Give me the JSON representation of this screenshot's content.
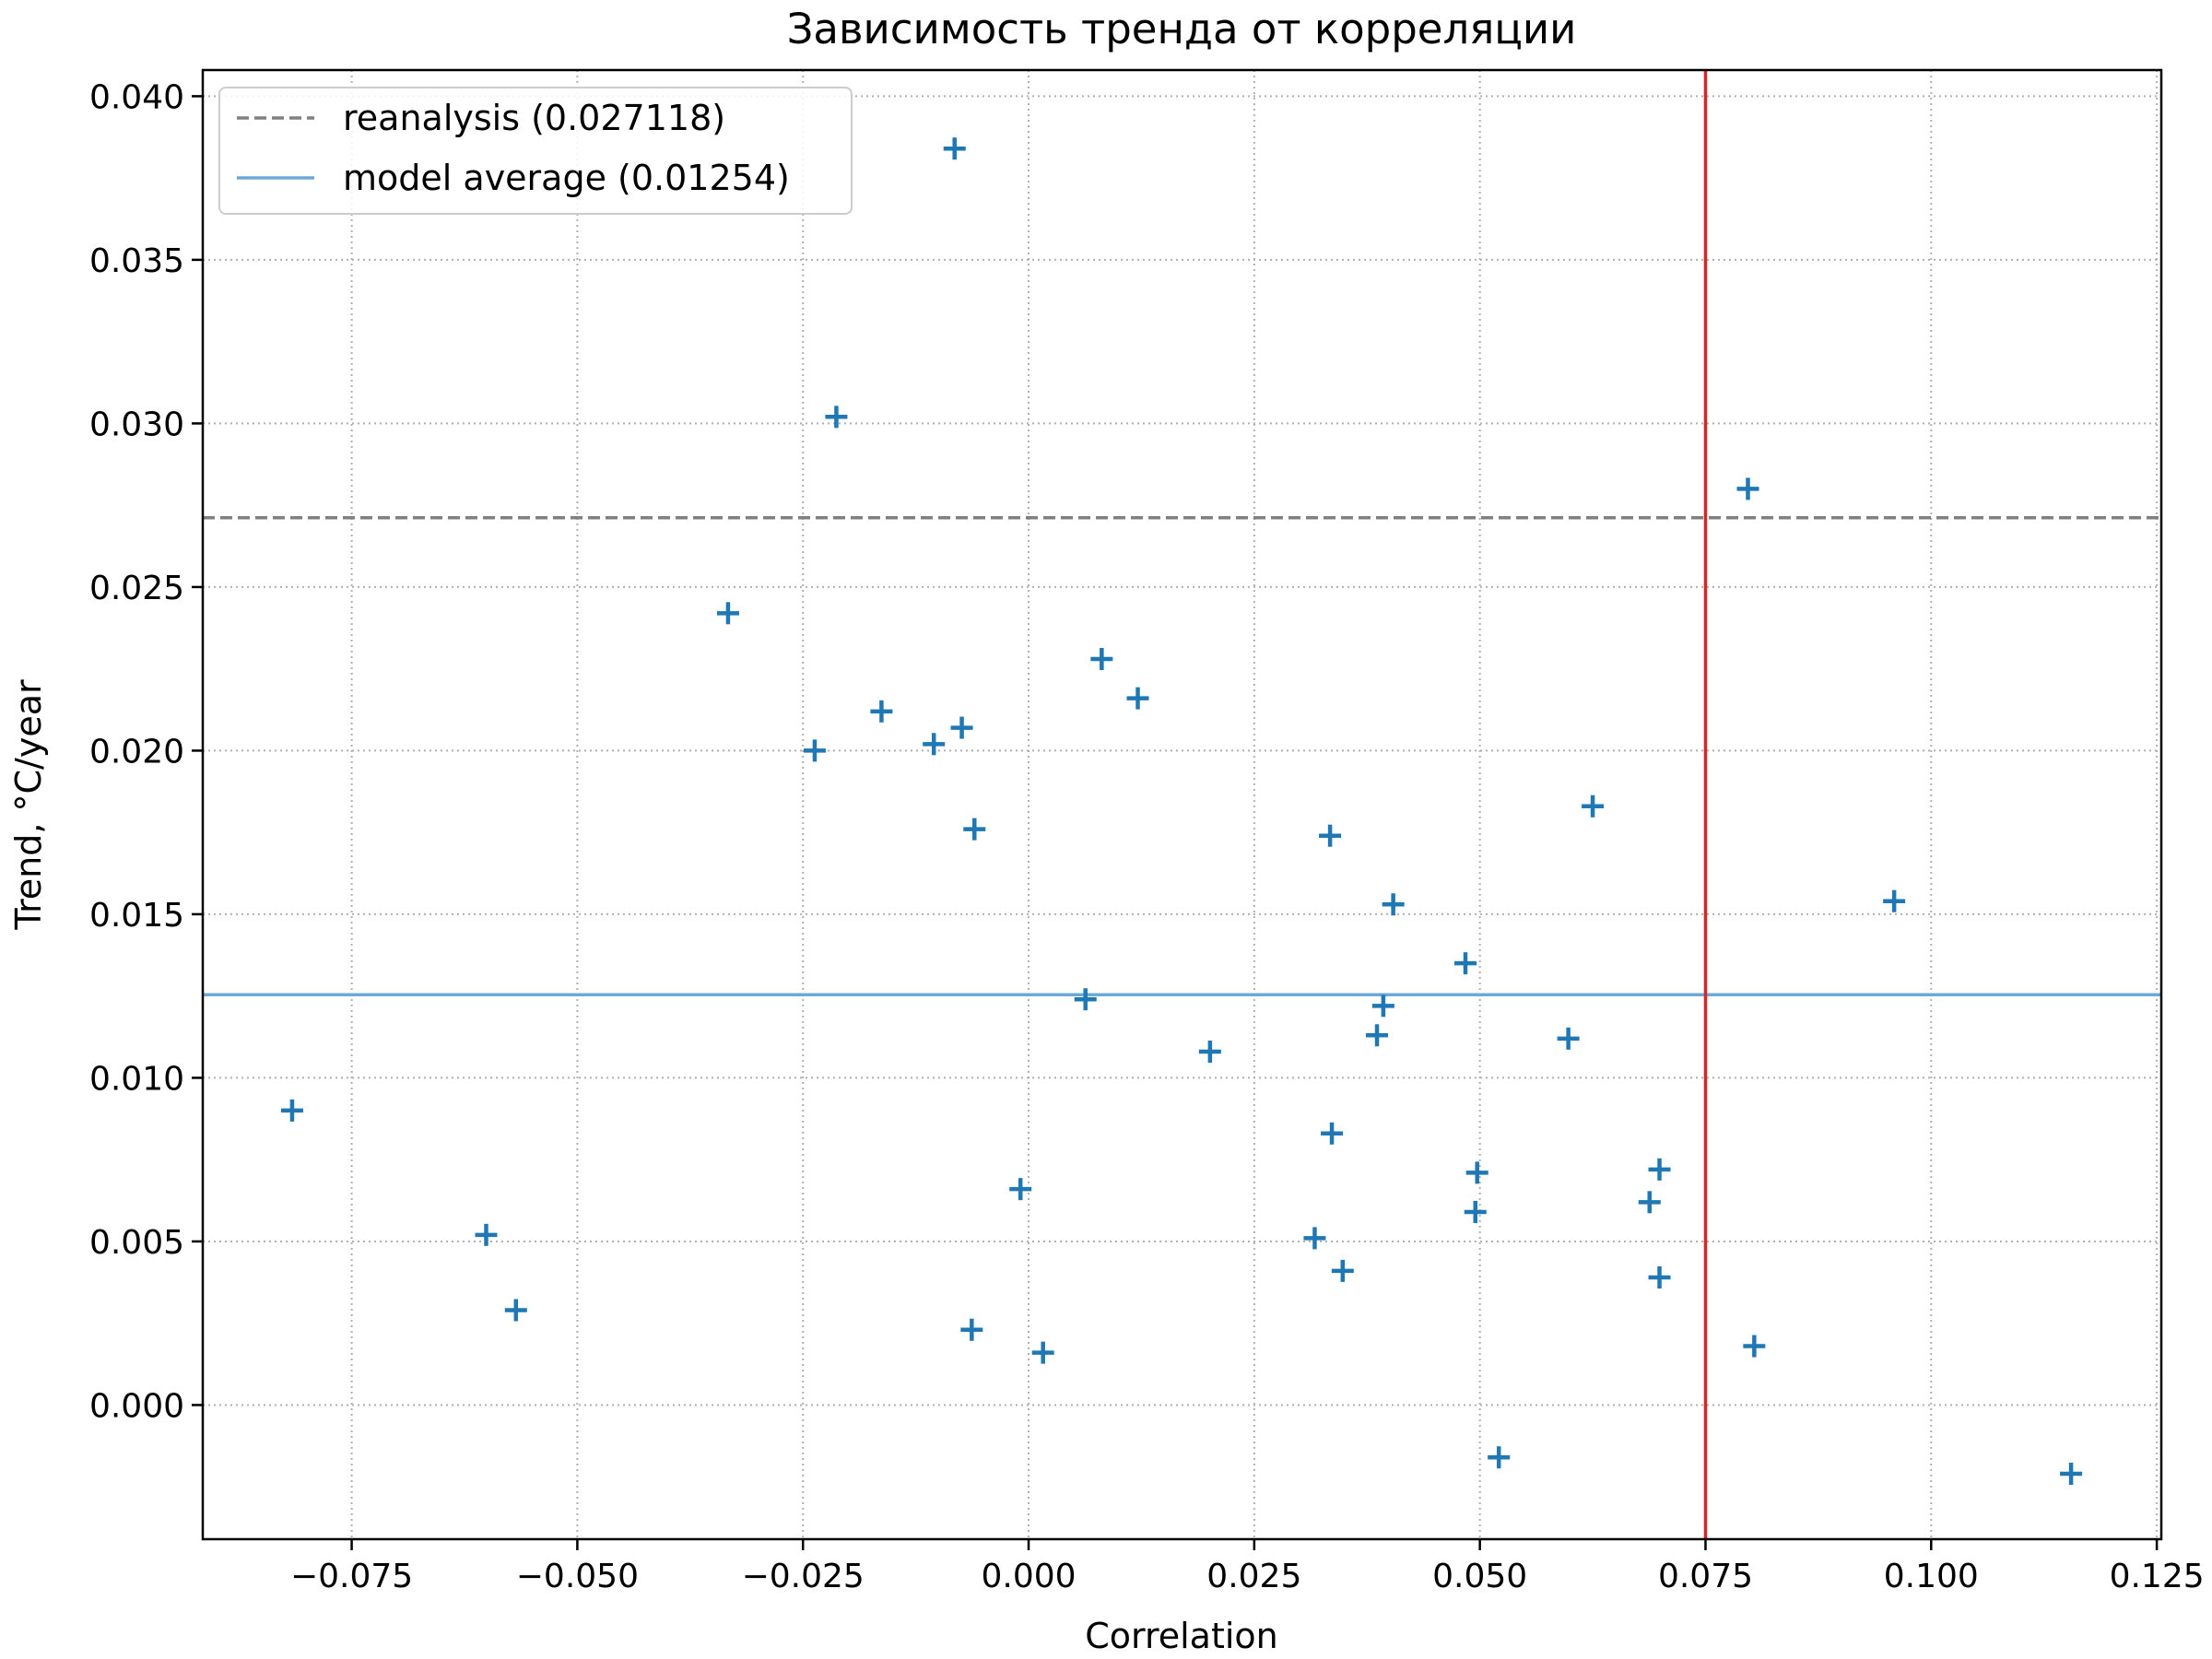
{
  "chart_data": {
    "type": "scatter",
    "title": "Зависимость тренда от корреляции",
    "xlabel": "Correlation",
    "ylabel": "Trend, °C/year",
    "xlim": [
      -0.0915,
      0.1255
    ],
    "ylim": [
      -0.0041,
      0.0408
    ],
    "xticks": [
      -0.075,
      -0.05,
      -0.025,
      0.0,
      0.025,
      0.05,
      0.075,
      0.1,
      0.125
    ],
    "xtick_labels": [
      "−0.075",
      "−0.050",
      "−0.025",
      "0.000",
      "0.025",
      "0.050",
      "0.075",
      "0.100",
      "0.125"
    ],
    "yticks": [
      0.0,
      0.005,
      0.01,
      0.015,
      0.02,
      0.025,
      0.03,
      0.035,
      0.04
    ],
    "ytick_labels": [
      "0.000",
      "0.005",
      "0.010",
      "0.015",
      "0.020",
      "0.025",
      "0.030",
      "0.035",
      "0.040"
    ],
    "grid": true,
    "legend_position": "top-left",
    "marker_color": "#1f77b4",
    "reference_lines": [
      {
        "orientation": "horizontal",
        "value": 0.027118,
        "style": "dashed",
        "color": "#808080",
        "label": "reanalysis (0.027118)"
      },
      {
        "orientation": "horizontal",
        "value": 0.01254,
        "style": "solid",
        "color": "#6ea9d5",
        "label": "model average (0.01254)"
      },
      {
        "orientation": "vertical",
        "value": 0.075,
        "style": "solid",
        "color": "#d62728"
      }
    ],
    "points": [
      {
        "x": -0.0082,
        "y": 0.0384
      },
      {
        "x": -0.0213,
        "y": 0.0302
      },
      {
        "x": 0.0797,
        "y": 0.028
      },
      {
        "x": -0.0333,
        "y": 0.0242
      },
      {
        "x": 0.0081,
        "y": 0.0228
      },
      {
        "x": 0.0121,
        "y": 0.0216
      },
      {
        "x": -0.0163,
        "y": 0.0212
      },
      {
        "x": -0.0074,
        "y": 0.0207
      },
      {
        "x": -0.0105,
        "y": 0.0202
      },
      {
        "x": -0.0237,
        "y": 0.02
      },
      {
        "x": 0.0625,
        "y": 0.0183
      },
      {
        "x": -0.006,
        "y": 0.0176
      },
      {
        "x": 0.0334,
        "y": 0.0174
      },
      {
        "x": 0.0959,
        "y": 0.0154
      },
      {
        "x": 0.0404,
        "y": 0.0153
      },
      {
        "x": 0.0484,
        "y": 0.0135
      },
      {
        "x": 0.0063,
        "y": 0.0124
      },
      {
        "x": 0.0393,
        "y": 0.0122
      },
      {
        "x": 0.0386,
        "y": 0.0113
      },
      {
        "x": 0.0598,
        "y": 0.0112
      },
      {
        "x": 0.0201,
        "y": 0.0108
      },
      {
        "x": -0.0816,
        "y": 0.009
      },
      {
        "x": 0.0336,
        "y": 0.0083
      },
      {
        "x": 0.0699,
        "y": 0.0072
      },
      {
        "x": 0.0497,
        "y": 0.0071
      },
      {
        "x": -0.0009,
        "y": 0.0066
      },
      {
        "x": 0.0688,
        "y": 0.0062
      },
      {
        "x": 0.0495,
        "y": 0.0059
      },
      {
        "x": -0.0601,
        "y": 0.0052
      },
      {
        "x": 0.0317,
        "y": 0.0051
      },
      {
        "x": 0.0348,
        "y": 0.0041
      },
      {
        "x": 0.0699,
        "y": 0.0039
      },
      {
        "x": -0.0568,
        "y": 0.0029
      },
      {
        "x": -0.0063,
        "y": 0.0023
      },
      {
        "x": 0.0804,
        "y": 0.0018
      },
      {
        "x": 0.0016,
        "y": 0.0016
      },
      {
        "x": 0.0521,
        "y": -0.0016
      },
      {
        "x": 0.1155,
        "y": -0.0021
      }
    ]
  }
}
